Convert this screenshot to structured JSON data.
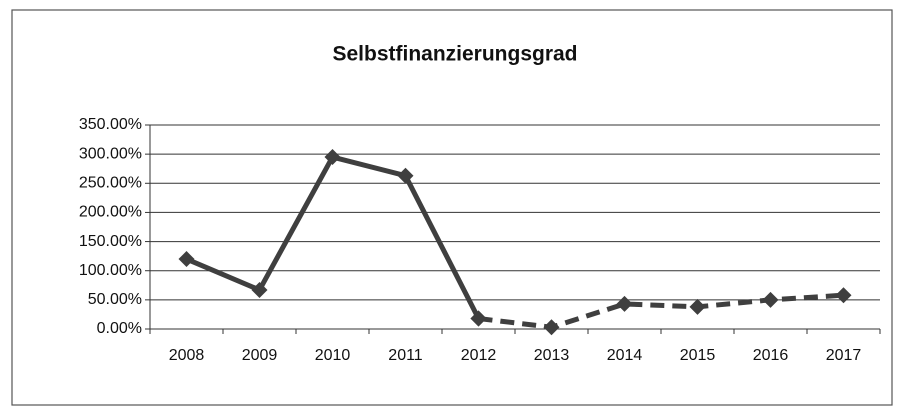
{
  "chart_data": {
    "type": "line",
    "title": "Selbstfinanzierungsgrad",
    "categories": [
      "2008",
      "2009",
      "2010",
      "2011",
      "2012",
      "2013",
      "2014",
      "2015",
      "2016",
      "2017"
    ],
    "series": [
      {
        "color": "#3f3f3f",
        "line_style": "solid",
        "marker": "diamond",
        "values": [
          120,
          67,
          295,
          263,
          18,
          null,
          null,
          null,
          null,
          null
        ]
      },
      {
        "color": "#3f3f3f",
        "line_style": "dashed",
        "marker": "diamond",
        "values": [
          null,
          null,
          null,
          null,
          18,
          3,
          43,
          38,
          50,
          58
        ]
      }
    ],
    "ylim": [
      0,
      350
    ],
    "yticks": [
      {
        "value": 0,
        "label": "0.00%"
      },
      {
        "value": 50,
        "label": "50.00%"
      },
      {
        "value": 100,
        "label": "100.00%"
      },
      {
        "value": 150,
        "label": "150.00%"
      },
      {
        "value": 200,
        "label": "200.00%"
      },
      {
        "value": 250,
        "label": "250.00%"
      },
      {
        "value": 300,
        "label": "300.00%"
      },
      {
        "value": 350,
        "label": "350.00%"
      }
    ],
    "grid": true
  }
}
